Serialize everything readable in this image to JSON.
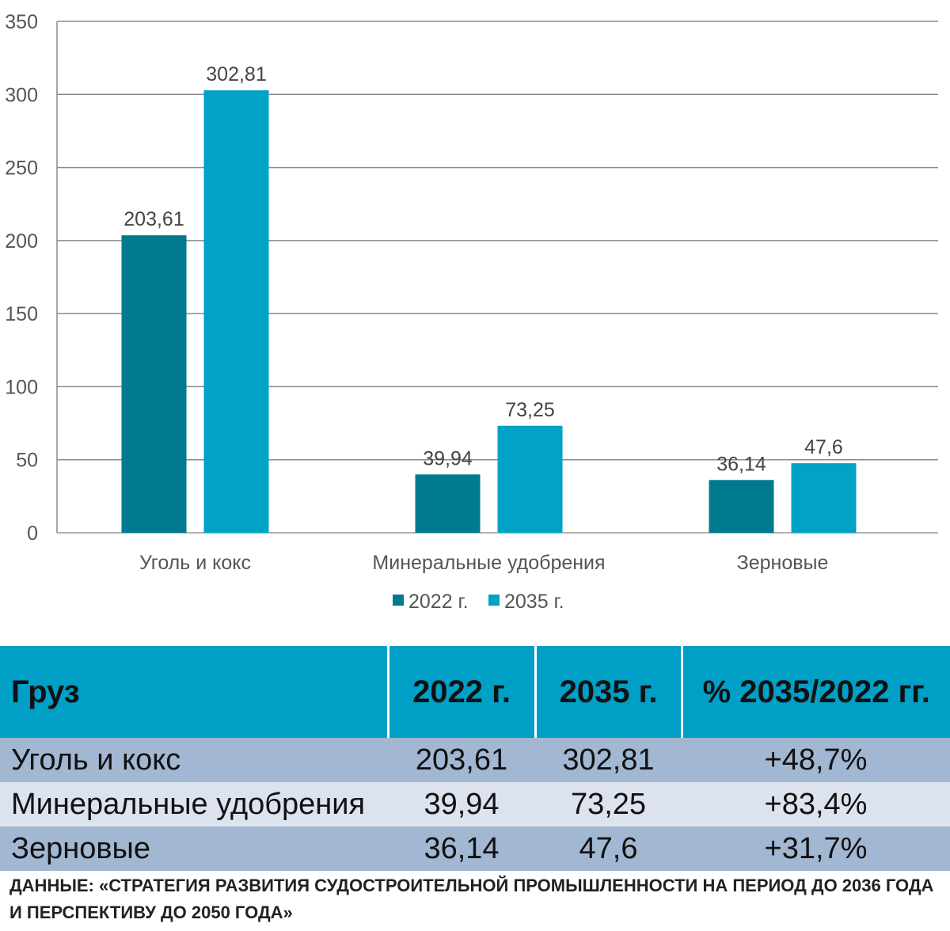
{
  "chart_data": {
    "type": "bar",
    "categories": [
      "Уголь и кокс",
      "Минеральные удобрения",
      "Зерновые"
    ],
    "series": [
      {
        "name": "2022 г.",
        "values": [
          203.61,
          39.94,
          36.14
        ],
        "labels": [
          "203,61",
          "39,94",
          "36,14"
        ],
        "color": "#007a8e"
      },
      {
        "name": "2035 г.",
        "values": [
          302.81,
          73.25,
          47.6
        ],
        "labels": [
          "302,81",
          "73,25",
          "47,6"
        ],
        "color": "#00a2c6"
      }
    ],
    "ylim": [
      0,
      350
    ],
    "yticks": [
      0,
      50,
      100,
      150,
      200,
      250,
      300,
      350
    ],
    "grid": true,
    "legend_position": "bottom"
  },
  "table": {
    "headers": [
      "Груз",
      "2022 г.",
      "2035 г.",
      "% 2035/2022 гг."
    ],
    "rows": [
      [
        "Уголь и кокс",
        "203,61",
        "302,81",
        "+48,7%"
      ],
      [
        "Минеральные удобрения",
        "39,94",
        "73,25",
        "+83,4%"
      ],
      [
        "Зерновые",
        "36,14",
        "47,6",
        "+31,7%"
      ]
    ]
  },
  "source": "ДАННЫЕ: «СТРАТЕГИЯ РАЗВИТИЯ СУДОСТРОИТЕЛЬНОЙ ПРОМЫШЛЕННОСТИ НА ПЕРИОД ДО 2036 ГОДА И ПЕРСПЕКТИВУ ДО 2050 ГОДА»",
  "colors": {
    "header_bg": "#009fc6",
    "row_dark": "#a2b7d1",
    "row_light": "#dce3ee"
  }
}
